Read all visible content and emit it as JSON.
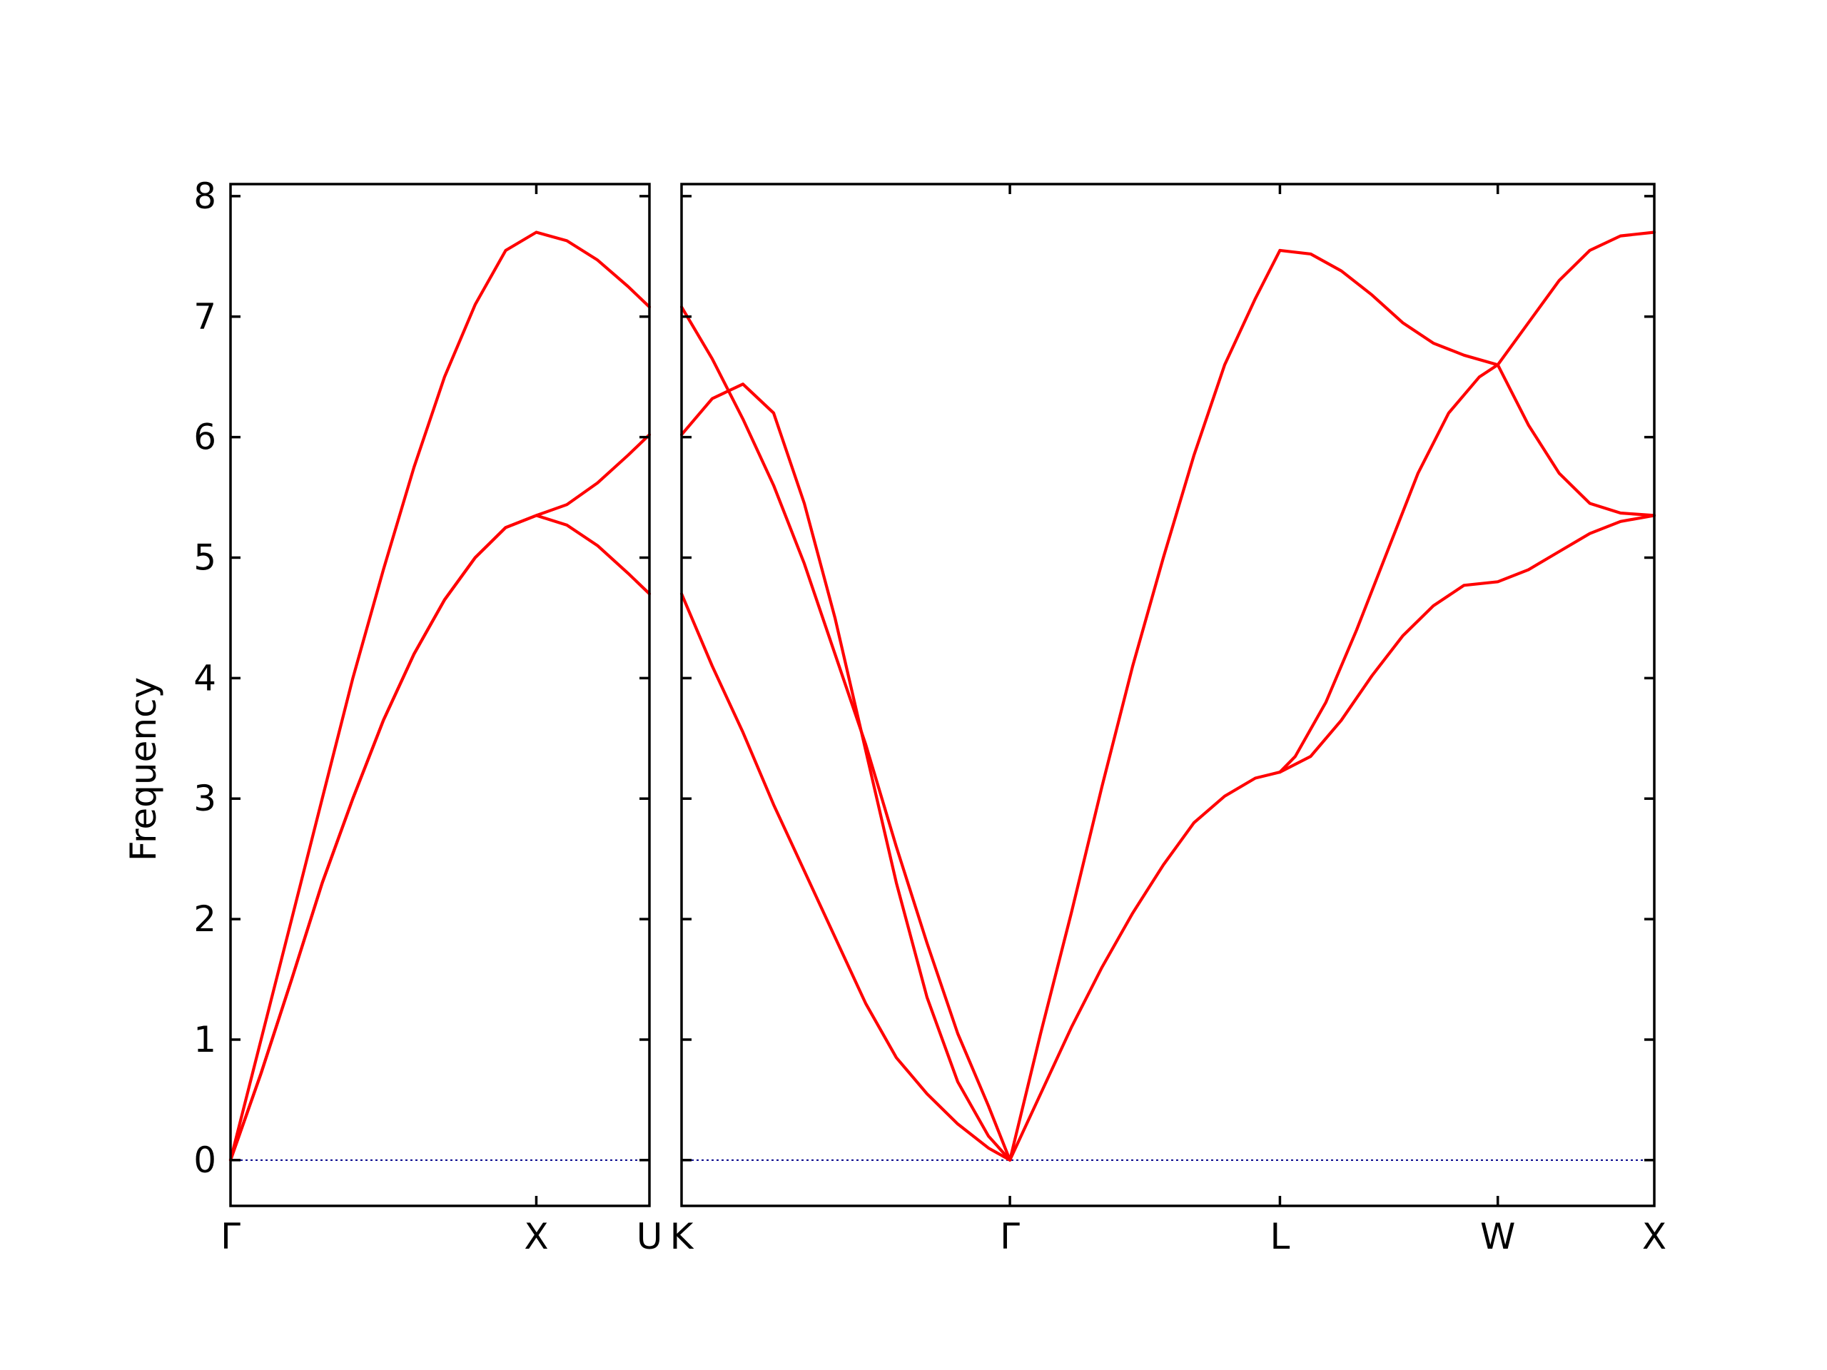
{
  "chart_data": {
    "type": "line",
    "title": "",
    "ylabel": "Frequency",
    "ylim": [
      -0.38,
      8.1
    ],
    "yticks": [
      0,
      1,
      2,
      3,
      4,
      5,
      6,
      7,
      8
    ],
    "colors": {
      "band": "#ff0000",
      "zero_line": "#00008b",
      "axis": "#000000"
    },
    "grid": false,
    "zero_line": {
      "y": 0,
      "style": "dotted"
    },
    "panels": [
      {
        "xlim": [
          0,
          1.37
        ],
        "ticks": [
          {
            "x": 0,
            "label": "Γ"
          },
          {
            "x": 1.0,
            "label": "X"
          },
          {
            "x": 1.37,
            "label": "U"
          }
        ],
        "series": [
          {
            "values": [
              [
                0,
                0
              ],
              [
                0.1,
                1.0
              ],
              [
                0.2,
                2.0
              ],
              [
                0.3,
                3.0
              ],
              [
                0.4,
                4.0
              ],
              [
                0.5,
                4.9
              ],
              [
                0.6,
                5.75
              ],
              [
                0.7,
                6.5
              ],
              [
                0.8,
                7.1
              ],
              [
                0.9,
                7.55
              ],
              [
                1.0,
                7.7
              ],
              [
                1.1,
                7.63
              ],
              [
                1.2,
                7.47
              ],
              [
                1.3,
                7.25
              ],
              [
                1.37,
                7.08
              ]
            ]
          },
          {
            "values": [
              [
                0,
                0
              ],
              [
                0.1,
                0.72
              ],
              [
                0.2,
                1.5
              ],
              [
                0.3,
                2.3
              ],
              [
                0.4,
                3.0
              ],
              [
                0.5,
                3.65
              ],
              [
                0.6,
                4.2
              ],
              [
                0.7,
                4.65
              ],
              [
                0.8,
                5.0
              ],
              [
                0.9,
                5.25
              ],
              [
                1.0,
                5.35
              ],
              [
                1.1,
                5.27
              ],
              [
                1.2,
                5.1
              ],
              [
                1.3,
                4.87
              ],
              [
                1.37,
                4.7
              ]
            ]
          },
          {
            "values": [
              [
                0,
                0
              ],
              [
                0.1,
                0.72
              ],
              [
                0.2,
                1.5
              ],
              [
                0.3,
                2.3
              ],
              [
                0.4,
                3.0
              ],
              [
                0.5,
                3.65
              ],
              [
                0.6,
                4.2
              ],
              [
                0.7,
                4.65
              ],
              [
                0.8,
                5.0
              ],
              [
                0.9,
                5.25
              ],
              [
                1.0,
                5.35
              ],
              [
                1.1,
                5.44
              ],
              [
                1.2,
                5.62
              ],
              [
                1.3,
                5.85
              ],
              [
                1.37,
                6.02
              ]
            ]
          }
        ]
      },
      {
        "xlim": [
          0,
          3.17
        ],
        "ticks": [
          {
            "x": 0,
            "label": "K"
          },
          {
            "x": 1.07,
            "label": "Γ"
          },
          {
            "x": 1.95,
            "label": "L"
          },
          {
            "x": 2.66,
            "label": "W"
          },
          {
            "x": 3.17,
            "label": "X"
          }
        ],
        "series": [
          {
            "values": [
              [
                0,
                7.08
              ],
              [
                0.1,
                6.65
              ],
              [
                0.2,
                6.15
              ],
              [
                0.3,
                5.6
              ],
              [
                0.4,
                4.95
              ],
              [
                0.5,
                4.2
              ],
              [
                0.6,
                3.45
              ],
              [
                0.7,
                2.6
              ],
              [
                0.8,
                1.8
              ],
              [
                0.9,
                1.05
              ],
              [
                1.0,
                0.45
              ],
              [
                1.07,
                0
              ]
            ]
          },
          {
            "values": [
              [
                0,
                6.02
              ],
              [
                0.1,
                6.32
              ],
              [
                0.2,
                6.44
              ],
              [
                0.3,
                6.2
              ],
              [
                0.4,
                5.45
              ],
              [
                0.5,
                4.5
              ],
              [
                0.6,
                3.4
              ],
              [
                0.7,
                2.3
              ],
              [
                0.8,
                1.35
              ],
              [
                0.9,
                0.65
              ],
              [
                1.0,
                0.2
              ],
              [
                1.07,
                0
              ]
            ]
          },
          {
            "values": [
              [
                0,
                4.7
              ],
              [
                0.1,
                4.1
              ],
              [
                0.2,
                3.55
              ],
              [
                0.3,
                2.95
              ],
              [
                0.4,
                2.4
              ],
              [
                0.5,
                1.85
              ],
              [
                0.6,
                1.3
              ],
              [
                0.7,
                0.85
              ],
              [
                0.8,
                0.55
              ],
              [
                0.9,
                0.3
              ],
              [
                1.0,
                0.1
              ],
              [
                1.07,
                0
              ]
            ]
          },
          {
            "values": [
              [
                1.07,
                0
              ],
              [
                1.17,
                1.05
              ],
              [
                1.27,
                2.05
              ],
              [
                1.37,
                3.1
              ],
              [
                1.47,
                4.1
              ],
              [
                1.57,
                5.0
              ],
              [
                1.67,
                5.85
              ],
              [
                1.77,
                6.6
              ],
              [
                1.87,
                7.15
              ],
              [
                1.95,
                7.55
              ],
              [
                2.05,
                7.52
              ],
              [
                2.15,
                7.38
              ],
              [
                2.25,
                7.18
              ],
              [
                2.35,
                6.95
              ],
              [
                2.45,
                6.78
              ],
              [
                2.55,
                6.68
              ],
              [
                2.66,
                6.6
              ],
              [
                2.76,
                6.95
              ],
              [
                2.86,
                7.3
              ],
              [
                2.96,
                7.55
              ],
              [
                3.06,
                7.67
              ],
              [
                3.17,
                7.7
              ]
            ]
          },
          {
            "values": [
              [
                1.07,
                0
              ],
              [
                1.17,
                0.55
              ],
              [
                1.27,
                1.1
              ],
              [
                1.37,
                1.6
              ],
              [
                1.47,
                2.05
              ],
              [
                1.57,
                2.45
              ],
              [
                1.67,
                2.8
              ],
              [
                1.77,
                3.02
              ],
              [
                1.87,
                3.17
              ],
              [
                1.95,
                3.22
              ],
              [
                2.0,
                3.35
              ],
              [
                2.1,
                3.8
              ],
              [
                2.2,
                4.4
              ],
              [
                2.3,
                5.05
              ],
              [
                2.4,
                5.7
              ],
              [
                2.5,
                6.2
              ],
              [
                2.6,
                6.5
              ],
              [
                2.66,
                6.6
              ],
              [
                2.76,
                6.1
              ],
              [
                2.86,
                5.7
              ],
              [
                2.96,
                5.45
              ],
              [
                3.06,
                5.37
              ],
              [
                3.17,
                5.35
              ]
            ]
          },
          {
            "values": [
              [
                1.95,
                3.22
              ],
              [
                2.05,
                3.35
              ],
              [
                2.15,
                3.65
              ],
              [
                2.25,
                4.02
              ],
              [
                2.35,
                4.35
              ],
              [
                2.45,
                4.6
              ],
              [
                2.55,
                4.77
              ],
              [
                2.66,
                4.8
              ],
              [
                2.76,
                4.9
              ],
              [
                2.86,
                5.05
              ],
              [
                2.96,
                5.2
              ],
              [
                3.06,
                5.3
              ],
              [
                3.17,
                5.35
              ]
            ]
          }
        ]
      }
    ]
  }
}
